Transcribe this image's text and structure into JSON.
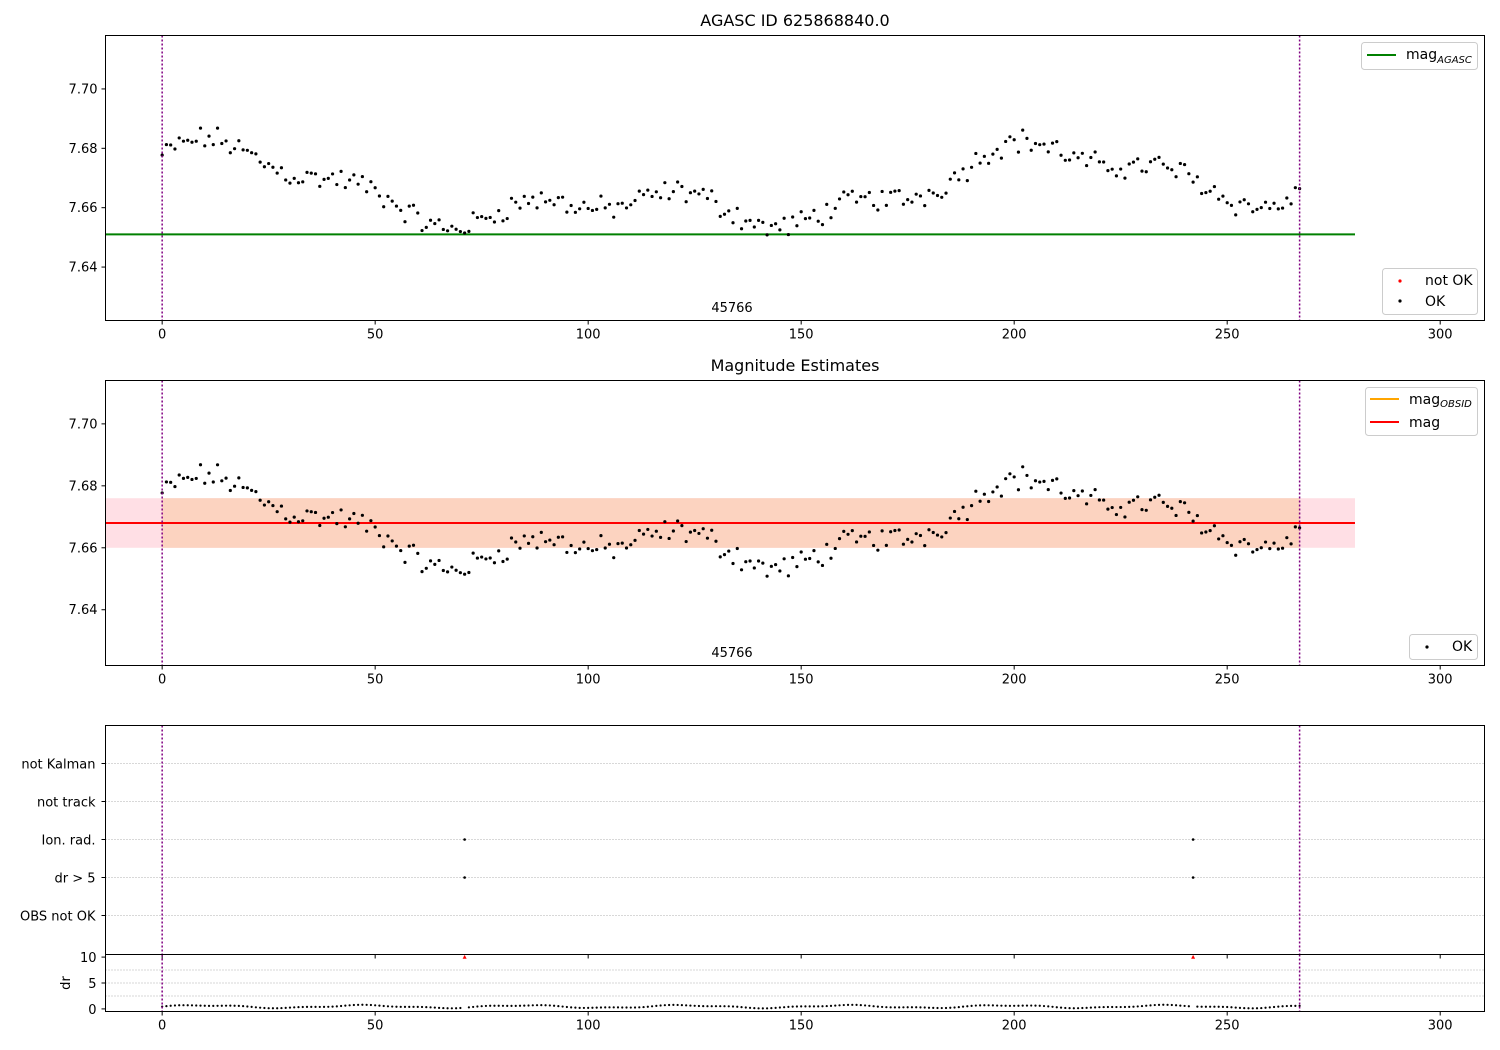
{
  "chart_data": [
    {
      "type": "scatter",
      "title": "AGASC ID 625868840.0",
      "xlim": [
        -13.3,
        310.4
      ],
      "ylim": [
        7.622,
        7.718
      ],
      "xticks": [
        0,
        50,
        100,
        150,
        200,
        250,
        300
      ],
      "yticks": [
        7.64,
        7.66,
        7.68,
        7.7
      ],
      "ytick_labels": [
        "7.64",
        "7.66",
        "7.68",
        "7.70"
      ],
      "obsid_label": "45766",
      "obsid_boundaries": [
        0,
        267
      ],
      "mag_agasc": 7.651,
      "mag_agasc_xrange": [
        -13.3,
        280
      ],
      "legend_top": {
        "placement": "top-right",
        "entries": [
          {
            "label_main": "mag",
            "label_sub": "AGASC",
            "color": "#008000"
          }
        ]
      },
      "legend_bottom": {
        "placement": "bottom-right",
        "entries": [
          {
            "label": "not OK",
            "color": "#ff0000"
          },
          {
            "label": "OK",
            "color": "#000000"
          }
        ]
      }
    },
    {
      "type": "scatter",
      "title": "Magnitude Estimates",
      "xlim": [
        -13.3,
        310.4
      ],
      "ylim": [
        7.622,
        7.714
      ],
      "xticks": [
        0,
        50,
        100,
        150,
        200,
        250,
        300
      ],
      "yticks": [
        7.64,
        7.66,
        7.68,
        7.7
      ],
      "ytick_labels": [
        "7.64",
        "7.66",
        "7.68",
        "7.70"
      ],
      "obsid_label": "45766",
      "obsid_boundaries": [
        0,
        267
      ],
      "mag": 7.668,
      "mag_obsid": 7.668,
      "mag_band": [
        7.66,
        7.676
      ],
      "band_xrange": [
        -13.3,
        280
      ],
      "legend_top": {
        "placement": "top-right",
        "entries": [
          {
            "label_main": "mag",
            "label_sub": "OBSID",
            "color": "#ffa500"
          },
          {
            "label": "mag",
            "color": "#ff0000"
          }
        ]
      },
      "legend_bottom": {
        "placement": "bottom-right",
        "entries": [
          {
            "label": "OK",
            "color": "#000000"
          }
        ]
      }
    },
    {
      "type": "scatter",
      "title": "",
      "xlim": [
        -13.3,
        310.4
      ],
      "flag_categories": [
        "not Kalman",
        "not track",
        "Ion. rad.",
        "dr > 5",
        "OBS not OK"
      ],
      "flag_points": [
        {
          "category": "Ion. rad.",
          "x": [
            71,
            242
          ]
        },
        {
          "category": "dr > 5",
          "x": [
            71,
            242
          ]
        }
      ],
      "obsid_boundaries": [
        0,
        267
      ]
    },
    {
      "type": "scatter",
      "title": "",
      "ylabel": "dr",
      "xlim": [
        -13.3,
        310.4
      ],
      "ylim": [
        -0.5,
        10.5
      ],
      "xticks": [
        0,
        50,
        100,
        150,
        200,
        250,
        300
      ],
      "yticks": [
        0,
        5,
        10
      ],
      "outliers": [
        {
          "x": 71,
          "y": 10
        },
        {
          "x": 242,
          "y": 10
        }
      ],
      "obsid_boundaries": [
        0,
        267
      ]
    }
  ],
  "colors": {
    "ok": "#000000",
    "not_ok": "#ff0000",
    "agasc_line": "#008000",
    "mag_line": "#ff0000",
    "mag_obsid_line": "#ffa500",
    "band_fill": "#fcd3c0",
    "band_fill_outer": "#ffdfe5",
    "boundary": "#800080",
    "grid": "#b0b0b0"
  }
}
